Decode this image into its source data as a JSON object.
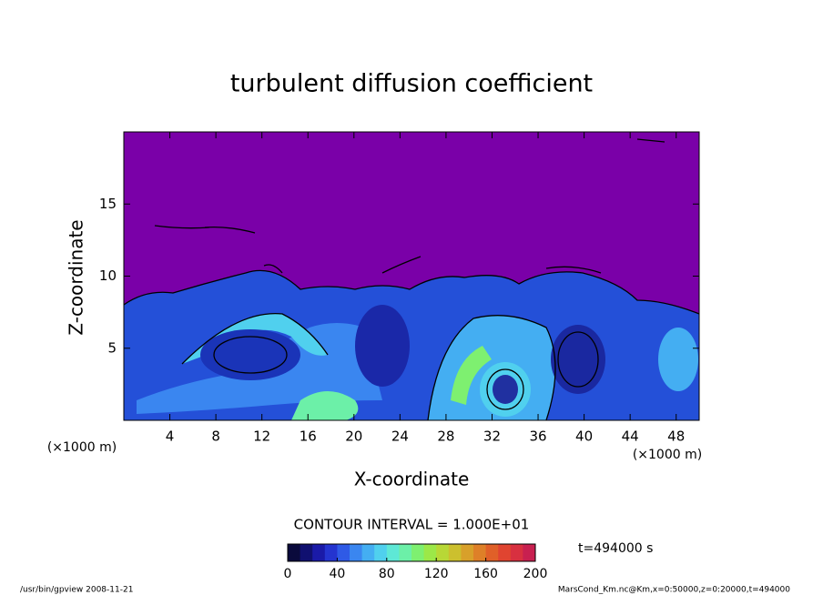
{
  "chart_data": {
    "type": "contour",
    "title": "turbulent diffusion coefficient",
    "x_label": "X-coordinate",
    "y_label": "Z-coordinate",
    "x_unit_label": "(×1000 m)",
    "y_unit_label": "(×1000 m)",
    "xlim": [
      0,
      50
    ],
    "xticks": [
      4,
      8,
      12,
      16,
      20,
      24,
      28,
      32,
      36,
      40,
      44,
      48
    ],
    "ylim": [
      0,
      20
    ],
    "yticks": [
      5,
      10,
      15
    ],
    "contour_interval_label": "CONTOUR INTERVAL = 1.000E+01",
    "time_label": "t=494000 s",
    "colorbar": {
      "lim": [
        0,
        200
      ],
      "ticks": [
        0,
        40,
        80,
        120,
        160,
        200
      ],
      "colors": [
        "#0a0a3c",
        "#101070",
        "#1a1aa8",
        "#2434d0",
        "#2f5ae6",
        "#3a86f0",
        "#44aef2",
        "#50d0ee",
        "#5ee8d6",
        "#6cf0a8",
        "#7ef070",
        "#9ce848",
        "#b8d836",
        "#ccc02e",
        "#d8a02a",
        "#de8028",
        "#e06028",
        "#e04430",
        "#d83040",
        "#c82050"
      ]
    },
    "footer_left": "/usr/bin/gpview   2008-11-21",
    "footer_right": "MarsCond_Km.nc@Km,x=0:50000,z=0:20000,t=494000"
  }
}
